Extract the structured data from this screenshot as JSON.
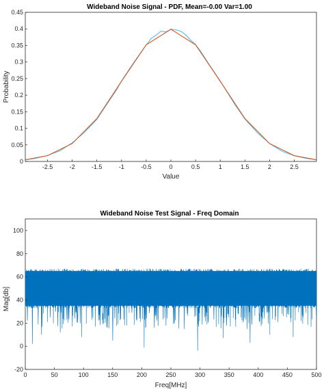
{
  "chart_data": [
    {
      "type": "line",
      "title": "Wideband Noise Signal - PDF, Mean=-0.00 Var=1.00",
      "xlabel": "Value",
      "ylabel": "Probability",
      "xlim": [
        -2.95,
        2.95
      ],
      "ylim": [
        0,
        0.45
      ],
      "xticks": [
        "-2.5",
        "-2",
        "-1.5",
        "-1",
        "-0.5",
        "0",
        "0.5",
        "1",
        "1.5",
        "2",
        "2.5"
      ],
      "yticks": [
        "0",
        "0.05",
        "0.1",
        "0.15",
        "0.2",
        "0.25",
        "0.3",
        "0.35",
        "0.4",
        "0.45"
      ],
      "grid": false,
      "series": [
        {
          "color": "#4DBEEE",
          "x": [
            -2.95,
            -2.75,
            -2.5,
            -2.25,
            -2.0,
            -1.75,
            -1.5,
            -1.3,
            -1.1,
            -1.0,
            -0.8,
            -0.6,
            -0.5,
            -0.4,
            -0.3,
            -0.2,
            -0.1,
            0.0,
            0.1,
            0.2,
            0.3,
            0.4,
            0.5,
            0.6,
            0.8,
            1.0,
            1.1,
            1.3,
            1.5,
            1.75,
            2.0,
            2.25,
            2.5,
            2.75,
            2.95
          ],
          "y": [
            0.005,
            0.009,
            0.018,
            0.032,
            0.056,
            0.088,
            0.127,
            0.172,
            0.216,
            0.243,
            0.288,
            0.331,
            0.351,
            0.371,
            0.381,
            0.393,
            0.391,
            0.399,
            0.397,
            0.393,
            0.382,
            0.366,
            0.353,
            0.333,
            0.287,
            0.243,
            0.219,
            0.171,
            0.128,
            0.087,
            0.054,
            0.031,
            0.017,
            0.009,
            0.005
          ]
        },
        {
          "color": "#D95319",
          "x": [
            -2.95,
            -2.5,
            -2.0,
            -1.5,
            -1.0,
            -0.5,
            0.0,
            0.5,
            1.0,
            1.5,
            2.0,
            2.5,
            2.95
          ],
          "y": [
            0.0051,
            0.0175,
            0.054,
            0.1295,
            0.242,
            0.352,
            0.3989,
            0.352,
            0.242,
            0.1295,
            0.054,
            0.0175,
            0.0051
          ]
        }
      ]
    },
    {
      "type": "line",
      "title": "Wideband Noise Test Signal - Freq Domain",
      "xlabel": "Freq[MHz]",
      "ylabel": "Mag[db]",
      "xlim": [
        0,
        500
      ],
      "ylim": [
        -20,
        110
      ],
      "xticks": [
        "0",
        "50",
        "100",
        "150",
        "200",
        "250",
        "300",
        "350",
        "400",
        "450",
        "500"
      ],
      "yticks": [
        "-20",
        "0",
        "20",
        "40",
        "60",
        "80",
        "100"
      ],
      "grid": false,
      "series": [
        {
          "color": "#0072BD",
          "x_range": [
            0,
            500
          ],
          "band_upper": 67,
          "band_lower": 33,
          "typical_dip_range": [
            15,
            30
          ],
          "deep_dips": [
            {
              "x": 12,
              "y": 2
            },
            {
              "x": 28,
              "y": 10
            },
            {
              "x": 60,
              "y": 12
            },
            {
              "x": 97,
              "y": 8
            },
            {
              "x": 150,
              "y": 5
            },
            {
              "x": 204,
              "y": -1
            },
            {
              "x": 296,
              "y": -4
            },
            {
              "x": 340,
              "y": 7
            },
            {
              "x": 386,
              "y": 3
            },
            {
              "x": 420,
              "y": 10
            },
            {
              "x": 460,
              "y": 8
            }
          ]
        }
      ]
    }
  ]
}
